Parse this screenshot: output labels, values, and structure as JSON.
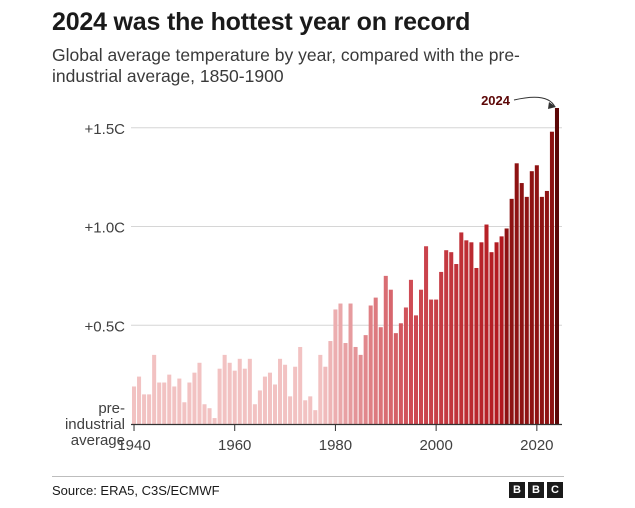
{
  "header": {
    "title": "2024 was the hottest year on record",
    "subtitle": "Global average temperature by year, compared with the pre-industrial average, 1850-1900"
  },
  "footer": {
    "source": "Source: ERA5, C3S/ECMWF",
    "brand_letters": [
      "B",
      "B",
      "C"
    ]
  },
  "chart_data": {
    "type": "bar",
    "title": "2024 was the hottest year on record",
    "subtitle": "Global average temperature by year, compared with the pre-industrial average, 1850-1900",
    "xlabel": "",
    "ylabel": "",
    "xlim": [
      1940,
      2024
    ],
    "ylim": [
      0,
      1.6
    ],
    "grid": true,
    "y_ticks": [
      {
        "value": 0.5,
        "label": "+0.5C"
      },
      {
        "value": 1.0,
        "label": "+1.0C"
      },
      {
        "value": 1.5,
        "label": "+1.5C"
      }
    ],
    "baseline_label": [
      "pre-",
      "industrial",
      "average"
    ],
    "x_ticks": [
      1940,
      1960,
      1980,
      2000,
      2020
    ],
    "annotation": {
      "text": "2024",
      "year": 2024
    },
    "categories": [
      1940,
      1941,
      1942,
      1943,
      1944,
      1945,
      1946,
      1947,
      1948,
      1949,
      1950,
      1951,
      1952,
      1953,
      1954,
      1955,
      1956,
      1957,
      1958,
      1959,
      1960,
      1961,
      1962,
      1963,
      1964,
      1965,
      1966,
      1967,
      1968,
      1969,
      1970,
      1971,
      1972,
      1973,
      1974,
      1975,
      1976,
      1977,
      1978,
      1979,
      1980,
      1981,
      1982,
      1983,
      1984,
      1985,
      1986,
      1987,
      1988,
      1989,
      1990,
      1991,
      1992,
      1993,
      1994,
      1995,
      1996,
      1997,
      1998,
      1999,
      2000,
      2001,
      2002,
      2003,
      2004,
      2005,
      2006,
      2007,
      2008,
      2009,
      2010,
      2011,
      2012,
      2013,
      2014,
      2015,
      2016,
      2017,
      2018,
      2019,
      2020,
      2021,
      2022,
      2023,
      2024
    ],
    "values": [
      0.19,
      0.24,
      0.15,
      0.15,
      0.35,
      0.21,
      0.21,
      0.25,
      0.19,
      0.23,
      0.11,
      0.21,
      0.26,
      0.31,
      0.1,
      0.08,
      0.03,
      0.28,
      0.35,
      0.31,
      0.27,
      0.33,
      0.28,
      0.33,
      0.1,
      0.17,
      0.24,
      0.26,
      0.2,
      0.33,
      0.3,
      0.14,
      0.29,
      0.39,
      0.12,
      0.14,
      0.07,
      0.35,
      0.29,
      0.42,
      0.58,
      0.61,
      0.41,
      0.61,
      0.39,
      0.35,
      0.45,
      0.6,
      0.64,
      0.49,
      0.75,
      0.68,
      0.46,
      0.51,
      0.59,
      0.73,
      0.55,
      0.68,
      0.9,
      0.63,
      0.63,
      0.77,
      0.88,
      0.87,
      0.81,
      0.97,
      0.93,
      0.92,
      0.79,
      0.92,
      1.01,
      0.87,
      0.92,
      0.95,
      0.99,
      1.14,
      1.32,
      1.22,
      1.15,
      1.28,
      1.31,
      1.15,
      1.18,
      1.48,
      1.6
    ],
    "colors": {
      "gradient_start": "#f2c2c2",
      "gradient_mid": "#cf4c55",
      "gradient_end": "#b0151b",
      "recent": "#8e1212",
      "highlight": "#5c0707",
      "grid": "#d6d6d6",
      "axis": "#333333"
    }
  }
}
